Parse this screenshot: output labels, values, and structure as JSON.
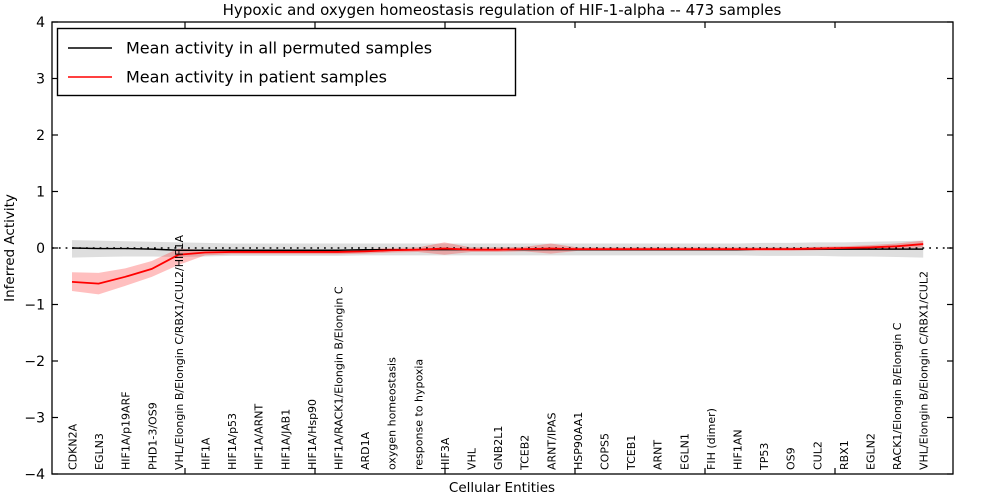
{
  "chart_data": {
    "type": "line",
    "title": "Hypoxic and oxygen homeostasis regulation of HIF-1-alpha -- 473 samples",
    "xlabel": "Cellular Entities",
    "ylabel": "Inferred Activity",
    "ylim": [
      -4,
      4
    ],
    "yticks": [
      -4,
      -3,
      -2,
      -1,
      0,
      1,
      2,
      3,
      4
    ],
    "ytick_labels": [
      "−4",
      "−3",
      "−2",
      "−1",
      "0",
      "1",
      "2",
      "3",
      "4"
    ],
    "grid": false,
    "zero_line": {
      "style": "dotted",
      "color": "#000000",
      "y": 0
    },
    "legend_position": "upper-left",
    "categories": [
      "CDKN2A",
      "EGLN3",
      "HIF1A/p19ARF",
      "PHD1-3/OS9",
      "VHL/Elongin B/Elongin C/RBX1/CUL2/HIF1A",
      "HIF1A",
      "HIF1A/p53",
      "HIF1A/ARNT",
      "HIF1A/JAB1",
      "HIF1A/Hsp90",
      "HIF1A/RACK1/Elongin B/Elongin C",
      "ARD1A",
      "oxygen homeostasis",
      "response to hypoxia",
      "HIF3A",
      "VHL",
      "GNB2L1",
      "TCEB2",
      "ARNT/IPAS",
      "HSP90AA1",
      "COPS5",
      "TCEB1",
      "ARNT",
      "EGLN1",
      "FIH (dimer)",
      "HIF1AN",
      "TP53",
      "OS9",
      "CUL2",
      "RBX1",
      "EGLN2",
      "RACK1/Elongin B/Elongin C",
      "VHL/Elongin B/Elongin C/RBX1/CUL2"
    ],
    "series": [
      {
        "name": "Mean activity in all permuted samples",
        "color": "#000000",
        "band_color": "rgba(0,0,0,0.13)",
        "values": [
          0.0,
          -0.01,
          -0.01,
          -0.02,
          -0.04,
          -0.04,
          -0.04,
          -0.04,
          -0.04,
          -0.04,
          -0.04,
          -0.03,
          -0.03,
          -0.03,
          -0.03,
          -0.03,
          -0.03,
          -0.03,
          -0.03,
          -0.03,
          -0.03,
          -0.03,
          -0.03,
          -0.03,
          -0.03,
          -0.03,
          -0.02,
          -0.02,
          -0.02,
          -0.02,
          -0.02,
          -0.02,
          -0.02
        ],
        "band_upper": [
          0.14,
          0.13,
          0.12,
          0.11,
          0.1,
          0.09,
          0.08,
          0.08,
          0.08,
          0.08,
          0.08,
          0.08,
          0.08,
          0.08,
          0.08,
          0.08,
          0.08,
          0.08,
          0.08,
          0.08,
          0.08,
          0.08,
          0.08,
          0.08,
          0.08,
          0.08,
          0.09,
          0.09,
          0.1,
          0.1,
          0.11,
          0.12,
          0.13
        ],
        "band_lower": [
          -0.17,
          -0.16,
          -0.15,
          -0.15,
          -0.16,
          -0.15,
          -0.14,
          -0.14,
          -0.14,
          -0.14,
          -0.14,
          -0.13,
          -0.13,
          -0.13,
          -0.13,
          -0.13,
          -0.13,
          -0.13,
          -0.13,
          -0.13,
          -0.13,
          -0.13,
          -0.13,
          -0.13,
          -0.13,
          -0.13,
          -0.14,
          -0.14,
          -0.14,
          -0.15,
          -0.15,
          -0.16,
          -0.17
        ]
      },
      {
        "name": "Mean activity in patient samples",
        "color": "#ff0000",
        "band_color": "rgba(255,0,0,0.25)",
        "values": [
          -0.6,
          -0.63,
          -0.51,
          -0.37,
          -0.12,
          -0.08,
          -0.07,
          -0.07,
          -0.07,
          -0.07,
          -0.07,
          -0.06,
          -0.04,
          -0.03,
          -0.01,
          -0.03,
          -0.03,
          -0.02,
          -0.01,
          -0.02,
          -0.02,
          -0.02,
          -0.02,
          -0.02,
          -0.02,
          -0.02,
          -0.02,
          -0.02,
          -0.01,
          0.0,
          0.01,
          0.03,
          0.07
        ],
        "band_upper": [
          -0.43,
          -0.44,
          -0.36,
          -0.23,
          -0.01,
          -0.03,
          -0.03,
          -0.03,
          -0.03,
          -0.03,
          -0.03,
          -0.02,
          0.0,
          0.01,
          0.1,
          0.01,
          0.01,
          0.02,
          0.08,
          0.01,
          0.01,
          0.01,
          0.01,
          0.01,
          0.01,
          0.01,
          0.01,
          0.01,
          0.02,
          0.03,
          0.05,
          0.08,
          0.13
        ],
        "band_lower": [
          -0.76,
          -0.82,
          -0.67,
          -0.51,
          -0.3,
          -0.13,
          -0.11,
          -0.11,
          -0.11,
          -0.11,
          -0.11,
          -0.1,
          -0.08,
          -0.07,
          -0.12,
          -0.07,
          -0.07,
          -0.06,
          -0.1,
          -0.05,
          -0.05,
          -0.05,
          -0.05,
          -0.05,
          -0.05,
          -0.05,
          -0.05,
          -0.05,
          -0.04,
          -0.03,
          -0.02,
          -0.01,
          0.01
        ]
      }
    ]
  }
}
